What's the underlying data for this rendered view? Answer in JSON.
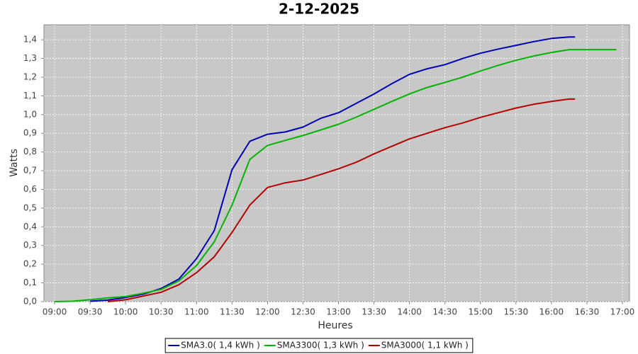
{
  "chart_data": {
    "type": "line",
    "title": "2-12-2025",
    "x_label": "Heures",
    "y_label": "Watts",
    "x": [
      "09:00",
      "09:15",
      "09:30",
      "09:45",
      "10:00",
      "10:15",
      "10:30",
      "10:45",
      "11:00",
      "11:15",
      "11:30",
      "11:45",
      "12:00",
      "12:15",
      "12:30",
      "12:45",
      "13:00",
      "13:15",
      "13:30",
      "13:45",
      "14:00",
      "14:15",
      "14:30",
      "14:45",
      "15:00",
      "15:15",
      "15:30",
      "15:45",
      "16:00",
      "16:15",
      "16:20",
      "16:30",
      "16:45",
      "16:55"
    ],
    "series": [
      {
        "name": "SMA3.0( 1,4 kWh )",
        "color": "#0000b4",
        "values": [
          null,
          null,
          0.002,
          0.008,
          0.022,
          0.04,
          0.07,
          0.12,
          0.23,
          0.38,
          0.705,
          0.857,
          0.895,
          0.907,
          0.933,
          0.98,
          1.01,
          1.06,
          1.11,
          1.165,
          1.215,
          1.245,
          1.267,
          1.3,
          1.328,
          1.35,
          1.37,
          1.39,
          1.407,
          1.415,
          1.415,
          null,
          null,
          null
        ]
      },
      {
        "name": "SMA3300( 1,3 kWh )",
        "color": "#00b400",
        "values": [
          0,
          0.002,
          0.01,
          0.02,
          0.027,
          0.045,
          0.065,
          0.11,
          0.193,
          0.32,
          0.516,
          0.76,
          0.835,
          0.862,
          0.888,
          0.918,
          0.948,
          0.986,
          1.028,
          1.07,
          1.11,
          1.145,
          1.172,
          1.2,
          1.233,
          1.263,
          1.29,
          1.313,
          1.332,
          1.347,
          1.347,
          1.347,
          1.347,
          1.347
        ]
      },
      {
        "name": "SMA3000( 1,1 kWh )",
        "color": "#b40000",
        "values": [
          null,
          null,
          null,
          0,
          0.01,
          0.03,
          0.05,
          0.09,
          0.155,
          0.24,
          0.37,
          0.516,
          0.61,
          0.635,
          0.65,
          0.68,
          0.71,
          0.745,
          0.79,
          0.83,
          0.87,
          0.9,
          0.93,
          0.955,
          0.985,
          1.01,
          1.035,
          1.055,
          1.07,
          1.083,
          1.083,
          null,
          null,
          null
        ]
      }
    ],
    "xlim": [
      "08:51",
      "17:06"
    ],
    "xticks": [
      "09:00",
      "09:30",
      "10:00",
      "10:30",
      "11:00",
      "11:30",
      "12:00",
      "12:30",
      "13:00",
      "13:30",
      "14:00",
      "14:30",
      "15:00",
      "15:30",
      "16:00",
      "16:30",
      "17:00"
    ],
    "ylim": [
      0,
      1.48
    ],
    "yticks": [
      {
        "value": 0,
        "label": "0,0"
      },
      {
        "value": 0.1,
        "label": "0,1"
      },
      {
        "value": 0.2,
        "label": "0,2"
      },
      {
        "value": 0.3,
        "label": "0,3"
      },
      {
        "value": 0.4,
        "label": "0,4"
      },
      {
        "value": 0.5,
        "label": "0,5"
      },
      {
        "value": 0.6,
        "label": "0,6"
      },
      {
        "value": 0.7,
        "label": "0,7"
      },
      {
        "value": 0.8,
        "label": "0,8"
      },
      {
        "value": 0.9,
        "label": "0,9"
      },
      {
        "value": 1.0,
        "label": "1,0"
      },
      {
        "value": 1.1,
        "label": "1,1"
      },
      {
        "value": 1.2,
        "label": "1,2"
      },
      {
        "value": 1.3,
        "label": "1,3"
      },
      {
        "value": 1.4,
        "label": "1,4"
      }
    ],
    "grid": true,
    "legend": "bottom"
  }
}
